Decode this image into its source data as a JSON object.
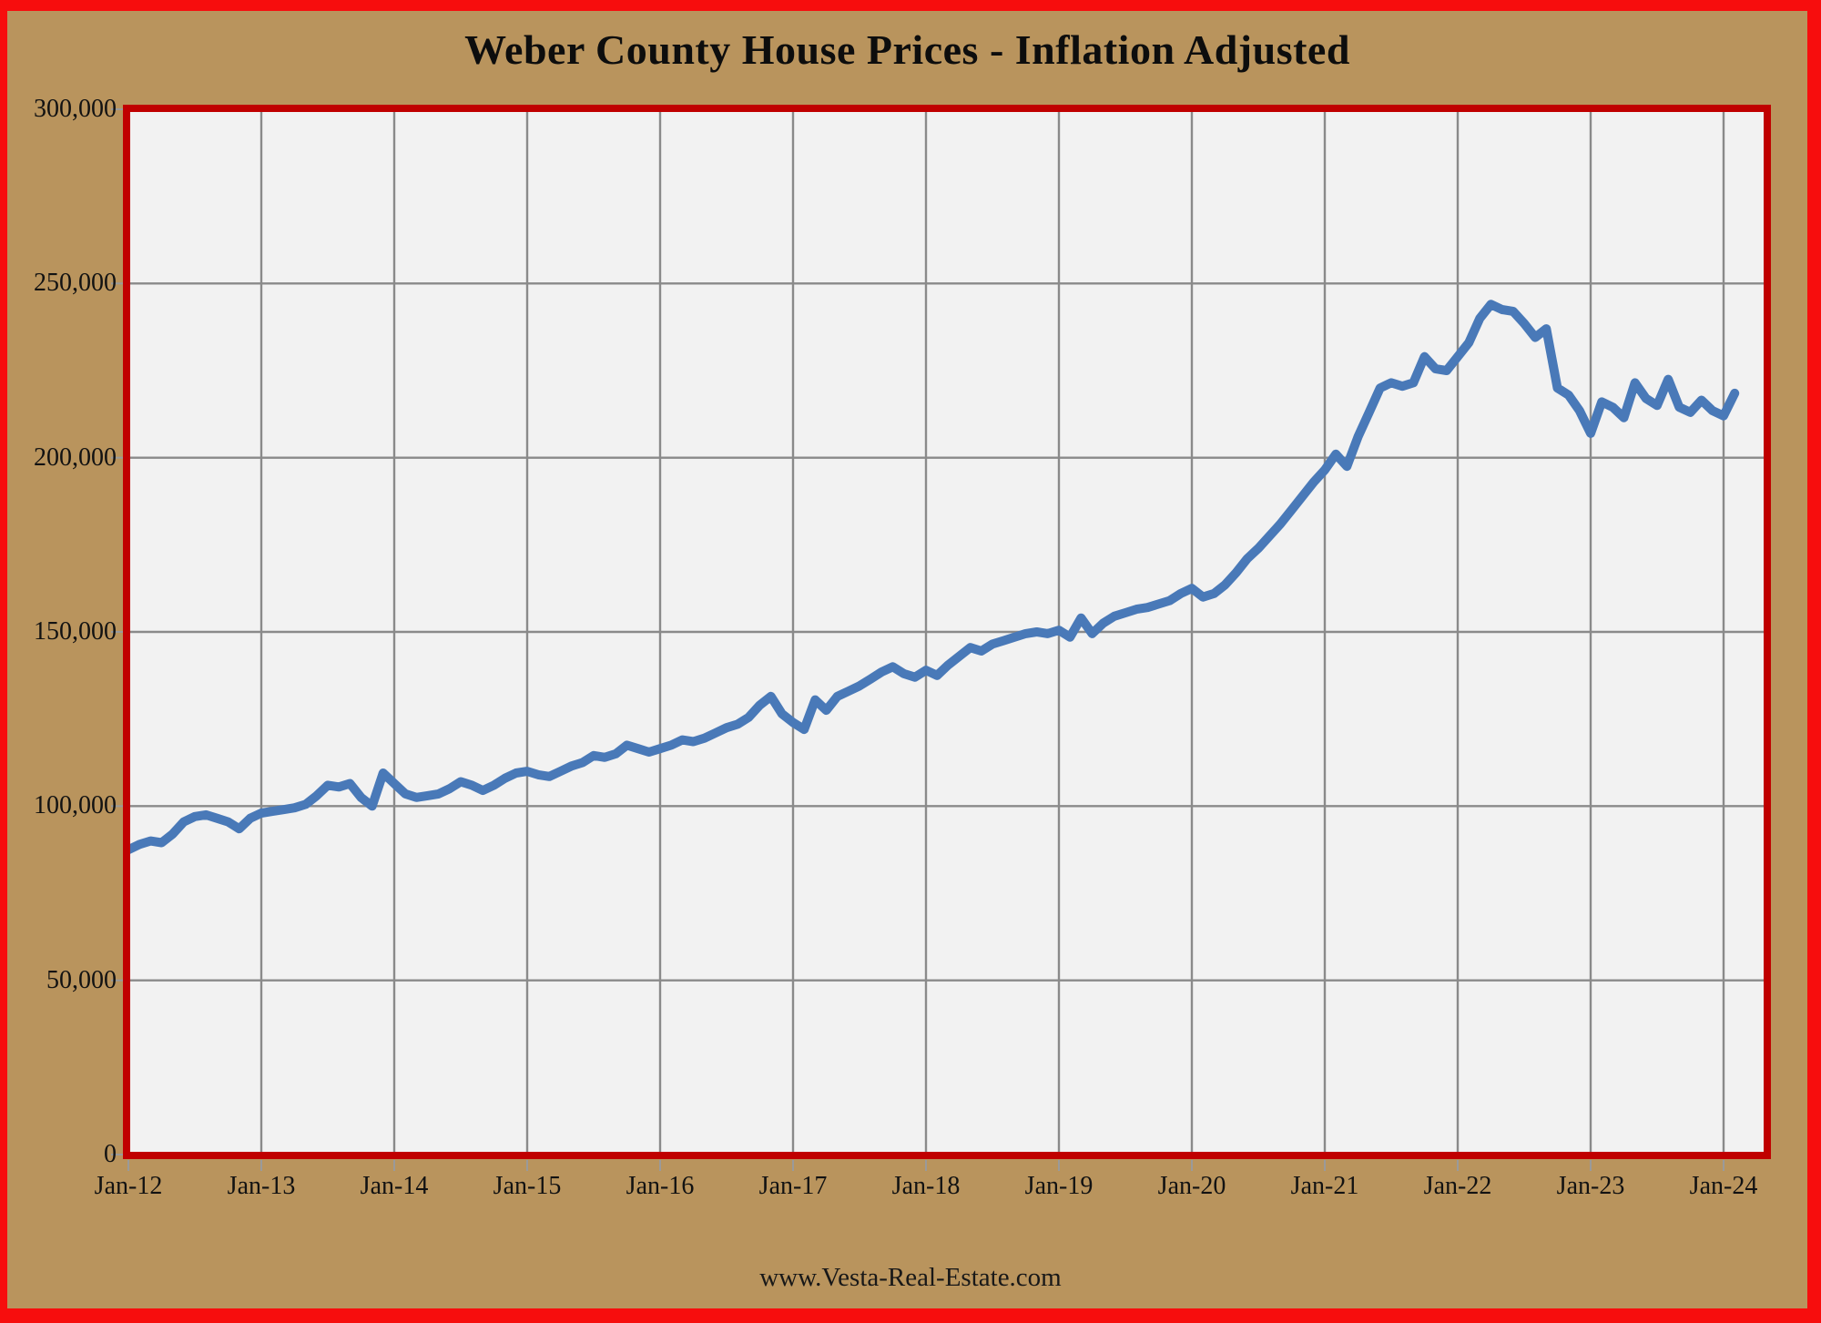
{
  "title": "Weber County House Prices - Inflation Adjusted",
  "footer": "www.Vesta-Real-Estate.com",
  "colors": {
    "background": "#b9945d",
    "outer_border": "#f70d0d",
    "inner_border": "#c00000",
    "plot_bg": "#f2f2f2",
    "grid": "#8a8a8a",
    "tick": "#9a9a9a",
    "line": "#4979b8",
    "text": "#121212"
  },
  "chart_data": {
    "type": "line",
    "title": "Weber County House Prices - Inflation Adjusted",
    "xlabel": "",
    "ylabel": "",
    "legend": "none",
    "grid": true,
    "frequency": "monthly",
    "start": "Jan-12",
    "end": "Feb-24",
    "ylim": [
      0,
      300000
    ],
    "y_ticks": [
      {
        "value": 0,
        "label": "0"
      },
      {
        "value": 50000,
        "label": "50,000"
      },
      {
        "value": 100000,
        "label": "100,000"
      },
      {
        "value": 150000,
        "label": "150,000"
      },
      {
        "value": 200000,
        "label": "200,000"
      },
      {
        "value": 250000,
        "label": "250,000"
      },
      {
        "value": 300000,
        "label": "300,000"
      }
    ],
    "x_ticks": [
      {
        "month_index": 0,
        "label": "Jan-12"
      },
      {
        "month_index": 12,
        "label": "Jan-13"
      },
      {
        "month_index": 24,
        "label": "Jan-14"
      },
      {
        "month_index": 36,
        "label": "Jan-15"
      },
      {
        "month_index": 48,
        "label": "Jan-16"
      },
      {
        "month_index": 60,
        "label": "Jan-17"
      },
      {
        "month_index": 72,
        "label": "Jan-18"
      },
      {
        "month_index": 84,
        "label": "Jan-19"
      },
      {
        "month_index": 96,
        "label": "Jan-20"
      },
      {
        "month_index": 108,
        "label": "Jan-21"
      },
      {
        "month_index": 120,
        "label": "Jan-22"
      },
      {
        "month_index": 132,
        "label": "Jan-23"
      },
      {
        "month_index": 144,
        "label": "Jan-24"
      }
    ],
    "values": [
      87500,
      89000,
      90000,
      89500,
      92000,
      95500,
      97000,
      97500,
      96500,
      95500,
      93500,
      96500,
      98000,
      98500,
      99000,
      99500,
      100500,
      103000,
      106000,
      105500,
      106500,
      102500,
      100000,
      109500,
      106500,
      103500,
      102500,
      103000,
      103500,
      105000,
      107000,
      106000,
      104500,
      106000,
      108000,
      109500,
      110000,
      109000,
      108500,
      110000,
      111500,
      112500,
      114500,
      114000,
      115000,
      117500,
      116500,
      115500,
      116500,
      117500,
      119000,
      118500,
      119500,
      121000,
      122500,
      123500,
      125500,
      129000,
      131500,
      126500,
      124000,
      122000,
      130500,
      127500,
      131500,
      133000,
      134500,
      136500,
      138500,
      140000,
      138000,
      137000,
      139000,
      137500,
      140500,
      143000,
      145500,
      144500,
      146500,
      147500,
      148500,
      149500,
      150000,
      149500,
      150500,
      148500,
      154000,
      149500,
      152500,
      154500,
      155500,
      156500,
      157000,
      158000,
      159000,
      161000,
      162500,
      160000,
      161000,
      163500,
      167000,
      171000,
      174000,
      177500,
      181000,
      185000,
      189000,
      193000,
      196500,
      201000,
      197500,
      206000,
      213000,
      220000,
      221500,
      220500,
      221500,
      229000,
      225500,
      225000,
      229000,
      233000,
      240000,
      244000,
      242500,
      242000,
      238500,
      234500,
      237000,
      220000,
      218000,
      213500,
      207000,
      216000,
      214500,
      211500,
      221500,
      217000,
      215000,
      222500,
      214500,
      213000,
      216500,
      213500,
      212000,
      218500
    ]
  }
}
